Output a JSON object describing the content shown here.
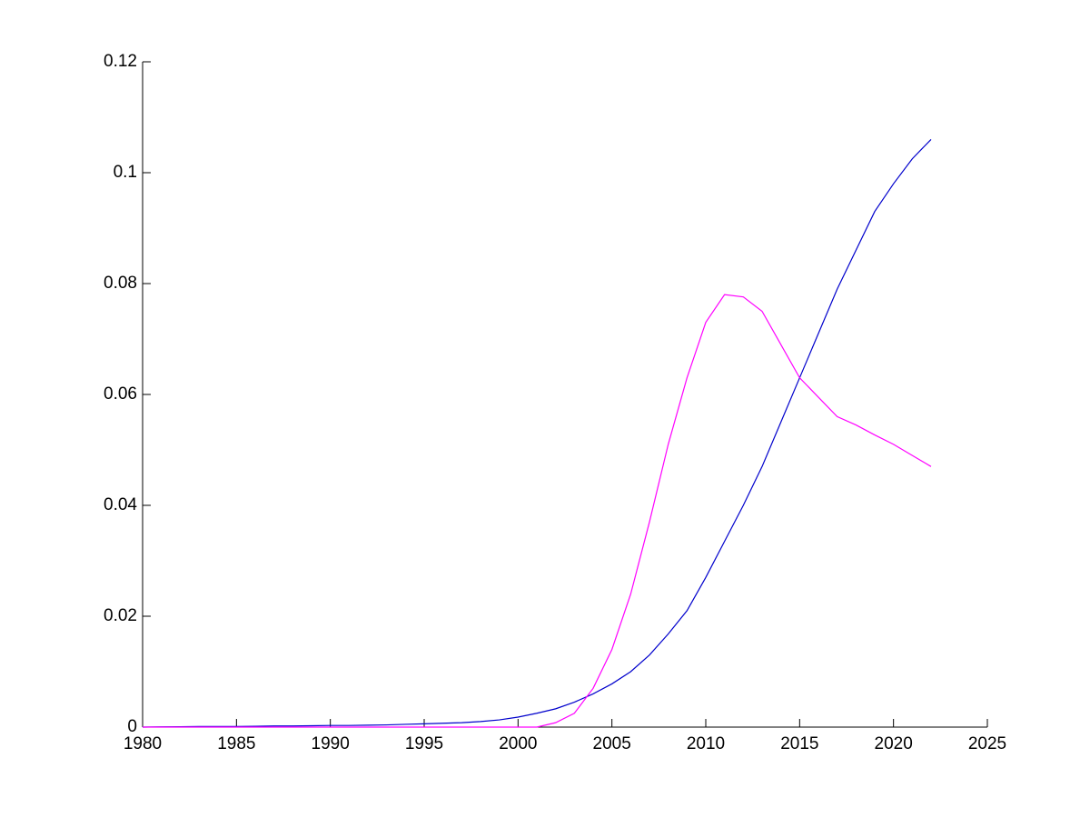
{
  "chart_data": {
    "type": "line",
    "x": [
      1980,
      1981,
      1982,
      1983,
      1984,
      1985,
      1986,
      1987,
      1988,
      1989,
      1990,
      1991,
      1992,
      1993,
      1994,
      1995,
      1996,
      1997,
      1998,
      1999,
      2000,
      2001,
      2002,
      2003,
      2004,
      2005,
      2006,
      2007,
      2008,
      2009,
      2010,
      2011,
      2012,
      2013,
      2014,
      2015,
      2016,
      2017,
      2018,
      2019,
      2020,
      2021,
      2022
    ],
    "series": [
      {
        "color": "#0000cc",
        "values": [
          0,
          5e-05,
          7e-05,
          0.0001,
          0.0001,
          0.0001,
          0.00015,
          0.0002,
          0.0002,
          0.00025,
          0.0003,
          0.0003,
          0.00035,
          0.0004,
          0.0005,
          0.0006,
          0.0007,
          0.0008,
          0.001,
          0.0013,
          0.0018,
          0.0025,
          0.0033,
          0.0045,
          0.006,
          0.0078,
          0.01,
          0.013,
          0.0168,
          0.021,
          0.027,
          0.0335,
          0.04,
          0.047,
          0.055,
          0.063,
          0.071,
          0.079,
          0.086,
          0.093,
          0.098,
          0.1025,
          0.106
        ]
      },
      {
        "color": "#ff00ff",
        "values": [
          0,
          0,
          0,
          0,
          0,
          0,
          0,
          0,
          0,
          0,
          0,
          0,
          0,
          0,
          0,
          0,
          0,
          0,
          0,
          0,
          0,
          0,
          0.0008,
          0.0025,
          0.007,
          0.014,
          0.024,
          0.037,
          0.051,
          0.063,
          0.073,
          0.078,
          0.0776,
          0.075,
          0.069,
          0.063,
          0.0595,
          0.056,
          0.0545,
          0.0527,
          0.051,
          0.049,
          0.047
        ]
      }
    ],
    "xlim": [
      1980,
      2025
    ],
    "xticks": [
      1980,
      1985,
      1990,
      1995,
      2000,
      2005,
      2010,
      2015,
      2020,
      2025
    ],
    "ylim": [
      0,
      0.12
    ],
    "yticks": [
      0,
      0.02,
      0.04,
      0.06,
      0.08,
      0.1,
      0.12
    ]
  }
}
